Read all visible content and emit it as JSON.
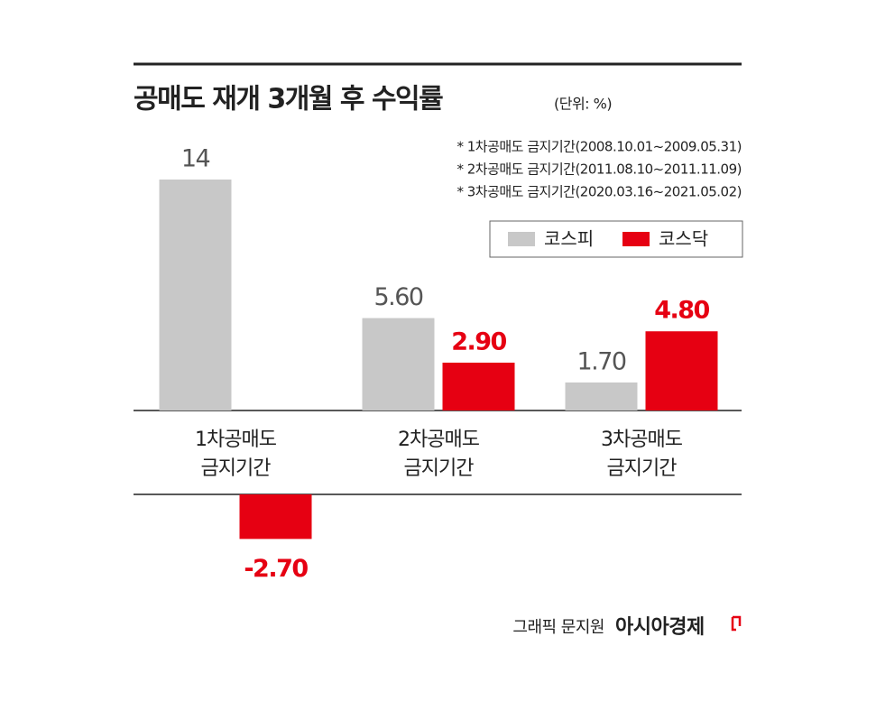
{
  "chart_data": {
    "type": "bar",
    "title": "공매도 재개 3개월 후 수익률",
    "subtitle": "(단위: %)",
    "annotations": [
      "* 1차공매도 금지기간(2008.10.01~2009.05.31)",
      "* 2차공매도 금지기간(2011.08.10~2011.11.09)",
      "* 3차공매도 금지기간(2020.03.16~2021.05.02)"
    ],
    "categories": [
      [
        "1차공매도",
        "금지기간"
      ],
      [
        "2차공매도",
        "금지기간"
      ],
      [
        "3차공매도",
        "금지기간"
      ]
    ],
    "series": [
      {
        "name": "코스피",
        "color": "#c8c8c8",
        "label_color": "#555555",
        "values": [
          14,
          5.6,
          1.7
        ],
        "value_labels": [
          "14",
          "5.60",
          "1.70"
        ]
      },
      {
        "name": "코스닥",
        "color": "#e60012",
        "label_color": "#e60012",
        "values": [
          -2.7,
          2.9,
          4.8
        ],
        "value_labels": [
          "-2.70",
          "2.90",
          "4.80"
        ]
      }
    ],
    "legend": "top-right",
    "source": "그래픽 문지원",
    "brand": "아시아경제"
  }
}
